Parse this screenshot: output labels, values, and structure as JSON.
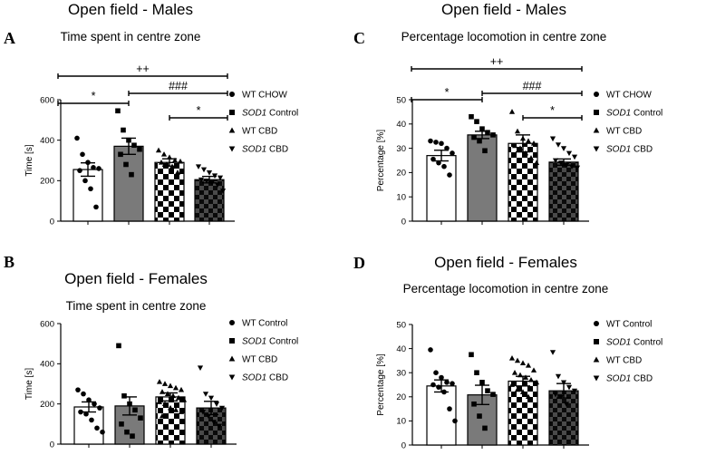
{
  "panels": [
    {
      "letter": "A",
      "title": "Open field - Males",
      "subtitle": "Time spent in centre zone"
    },
    {
      "letter": "C",
      "title": "Open field - Males",
      "subtitle": "Percentage locomotion in centre zone"
    },
    {
      "letter": "B",
      "title": "Open field - Females",
      "subtitle": "Time spent in centre zone"
    },
    {
      "letter": "D",
      "title": "Open field - Females",
      "subtitle": "Percentage locomotion in centre zone"
    }
  ],
  "legends": [
    [
      {
        "gene": "",
        "rest": "WT CHOW",
        "marker": "circle"
      },
      {
        "gene": "SOD1",
        "rest": " Control",
        "marker": "square"
      },
      {
        "gene": "",
        "rest": "WT CBD",
        "marker": "triangle-up"
      },
      {
        "gene": "SOD1",
        "rest": " CBD",
        "marker": "triangle-down"
      }
    ],
    [
      {
        "gene": "",
        "rest": "WT CHOW",
        "marker": "circle"
      },
      {
        "gene": "SOD1",
        "rest": " Control",
        "marker": "square"
      },
      {
        "gene": "",
        "rest": "WT CBD",
        "marker": "triangle-up"
      },
      {
        "gene": "SOD1",
        "rest": " CBD",
        "marker": "triangle-down"
      }
    ],
    [
      {
        "gene": "",
        "rest": "WT Control",
        "marker": "circle"
      },
      {
        "gene": "SOD1",
        "rest": " Control",
        "marker": "square"
      },
      {
        "gene": "",
        "rest": "WT CBD",
        "marker": "triangle-up"
      },
      {
        "gene": "SOD1",
        "rest": " CBD",
        "marker": "triangle-down"
      }
    ],
    [
      {
        "gene": "",
        "rest": "WT Control",
        "marker": "circle"
      },
      {
        "gene": "SOD1",
        "rest": " Control",
        "marker": "square"
      },
      {
        "gene": "",
        "rest": "WT CBD",
        "marker": "triangle-up"
      },
      {
        "gene": "SOD1",
        "rest": " CBD",
        "marker": "triangle-down"
      }
    ]
  ],
  "chart_data": [
    {
      "type": "bar",
      "panel": "A",
      "title": "Open field - Males",
      "subtitle": "Time spent in centre zone",
      "ylabel": "Time [s]",
      "ylim": [
        0,
        600
      ],
      "yticks": [
        0,
        200,
        400,
        600
      ],
      "fills": [
        "white",
        "gray",
        "checker",
        "dark-checker"
      ],
      "series": [
        {
          "name": "WT CHOW",
          "marker": "circle",
          "mean": 255,
          "sem": 33,
          "points": [
            410,
            330,
            290,
            265,
            260,
            250,
            200,
            160,
            70
          ]
        },
        {
          "name": "SOD1 Control",
          "marker": "square",
          "mean": 370,
          "sem": 40,
          "points": [
            545,
            450,
            400,
            375,
            355,
            330,
            280,
            230
          ]
        },
        {
          "name": "WT CBD",
          "marker": "triangle-up",
          "mean": 290,
          "sem": 18,
          "points": [
            350,
            330,
            315,
            300,
            295,
            290,
            280,
            270,
            240
          ]
        },
        {
          "name": "SOD1 CBD",
          "marker": "triangle-down",
          "mean": 205,
          "sem": 16,
          "points": [
            270,
            255,
            240,
            225,
            215,
            205,
            200,
            190,
            180,
            150
          ]
        }
      ],
      "significance": [
        {
          "label": "++",
          "from": 0,
          "to": 3
        },
        {
          "label": "*",
          "from": 0,
          "to": 1
        },
        {
          "label": "###",
          "from": 1,
          "to": 3
        },
        {
          "label": "*",
          "from": 2,
          "to": 3
        }
      ]
    },
    {
      "type": "bar",
      "panel": "C",
      "title": "Open field - Males",
      "subtitle": "Percentage locomotion in centre zone",
      "ylabel": "Percentage [%]",
      "ylim": [
        0,
        50
      ],
      "yticks": [
        0,
        10,
        20,
        30,
        40,
        50
      ],
      "fills": [
        "white",
        "gray",
        "checker",
        "dark-checker"
      ],
      "series": [
        {
          "name": "WT CHOW",
          "marker": "circle",
          "mean": 27,
          "sem": 2.2,
          "points": [
            33,
            32.5,
            32,
            30,
            28,
            25.5,
            24,
            22.5,
            19
          ]
        },
        {
          "name": "SOD1 Control",
          "marker": "square",
          "mean": 35.5,
          "sem": 1.5,
          "points": [
            43,
            41,
            38,
            36.5,
            35.5,
            34.5,
            33,
            29
          ]
        },
        {
          "name": "WT CBD",
          "marker": "triangle-up",
          "mean": 32,
          "sem": 3.5,
          "points": [
            45,
            37,
            34,
            33,
            32,
            31,
            30,
            28,
            26,
            24
          ]
        },
        {
          "name": "SOD1 CBD",
          "marker": "triangle-down",
          "mean": 24.3,
          "sem": 1.3,
          "points": [
            34,
            31.5,
            30,
            28,
            26.5,
            25,
            24,
            23,
            22.5,
            22
          ]
        }
      ],
      "significance": [
        {
          "label": "++",
          "from": 0,
          "to": 3
        },
        {
          "label": "*",
          "from": 0,
          "to": 1
        },
        {
          "label": "###",
          "from": 1,
          "to": 3
        },
        {
          "label": "*",
          "from": 2,
          "to": 3
        }
      ]
    },
    {
      "type": "bar",
      "panel": "B",
      "title": "Open field - Females",
      "subtitle": "Time spent in centre zone",
      "ylabel": "Time [s]",
      "ylim": [
        0,
        600
      ],
      "yticks": [
        0,
        200,
        400,
        600
      ],
      "fills": [
        "white",
        "gray",
        "checker",
        "dark-checker"
      ],
      "series": [
        {
          "name": "WT Control",
          "marker": "circle",
          "mean": 185,
          "sem": 25,
          "points": [
            270,
            250,
            220,
            200,
            180,
            160,
            150,
            120,
            80,
            60
          ]
        },
        {
          "name": "SOD1 Control",
          "marker": "square",
          "mean": 190,
          "sem": 45,
          "points": [
            490,
            240,
            200,
            170,
            130,
            100,
            60,
            40
          ]
        },
        {
          "name": "WT CBD",
          "marker": "triangle-up",
          "mean": 235,
          "sem": 20,
          "points": [
            310,
            300,
            290,
            280,
            270,
            260,
            250,
            240,
            230,
            220,
            210,
            200,
            180,
            170,
            160,
            140
          ]
        },
        {
          "name": "SOD1 CBD",
          "marker": "triangle-down",
          "mean": 180,
          "sem": 33,
          "points": [
            380,
            250,
            230,
            200,
            180,
            160,
            140,
            110,
            90
          ]
        }
      ],
      "significance": []
    },
    {
      "type": "bar",
      "panel": "D",
      "title": "Open field - Females",
      "subtitle": "Percentage locomotion in centre zone",
      "ylabel": "Percentage [%]",
      "ylim": [
        0,
        50
      ],
      "yticks": [
        0,
        10,
        20,
        30,
        40,
        50
      ],
      "fills": [
        "white",
        "gray",
        "checker",
        "dark-checker"
      ],
      "series": [
        {
          "name": "WT Control",
          "marker": "circle",
          "mean": 24.5,
          "sem": 2.5,
          "points": [
            39.5,
            30,
            28,
            26,
            25.5,
            25,
            24,
            22,
            15,
            10
          ]
        },
        {
          "name": "SOD1 Control",
          "marker": "square",
          "mean": 20.8,
          "sem": 4,
          "points": [
            37.5,
            30,
            26,
            22.5,
            21,
            17,
            12,
            7
          ]
        },
        {
          "name": "WT CBD",
          "marker": "triangle-up",
          "mean": 26.5,
          "sem": 2,
          "points": [
            36,
            35,
            34,
            33,
            31,
            30,
            29,
            28,
            27,
            26,
            25,
            23,
            22,
            20
          ]
        },
        {
          "name": "SOD1 CBD",
          "marker": "triangle-down",
          "mean": 22.5,
          "sem": 3,
          "points": [
            38.5,
            28.5,
            26,
            24,
            22.5,
            21,
            20,
            17
          ]
        }
      ],
      "significance": []
    }
  ]
}
